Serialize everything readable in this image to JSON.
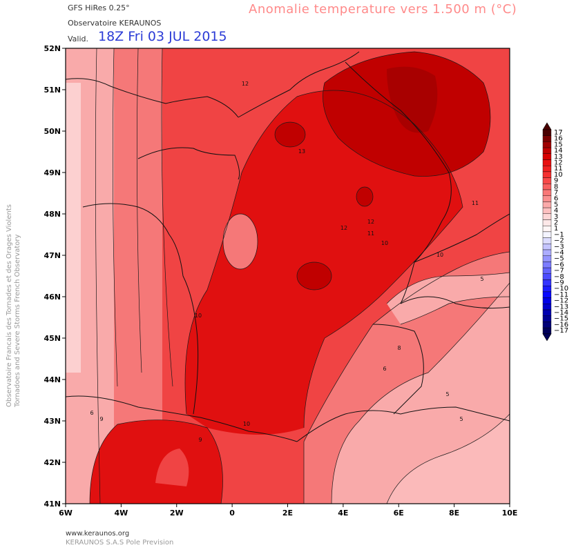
{
  "header": {
    "model": "GFS HiRes 0.25°",
    "observatory": "Observatoire KERAUNOS",
    "title": "Anomalie temperature vers 1.500 m (°C)",
    "valid_label": "Valid.",
    "valid_time": "18Z Fri 03 JUL 2015"
  },
  "side_text": {
    "line1": "Observatoire Francais des Tornades et des Orages Violents",
    "line2": "Tornadoes and Severe Storms French Observatory"
  },
  "footer": {
    "site": "www.keraunos.org",
    "company": "KERAUNOS S.A.S Pole Prevision"
  },
  "map": {
    "lat_labels": [
      "52N",
      "51N",
      "50N",
      "49N",
      "48N",
      "47N",
      "46N",
      "45N",
      "44N",
      "43N",
      "42N",
      "41N"
    ],
    "lon_labels": [
      "6W",
      "4W",
      "2W",
      "0",
      "2E",
      "4E",
      "6E",
      "8E",
      "10E"
    ],
    "contour_labels": [
      "12",
      "13",
      "12",
      "12",
      "11",
      "10",
      "11",
      "10",
      "10",
      "10",
      "9",
      "9",
      "6",
      "8",
      "6",
      "5",
      "5",
      "5"
    ],
    "colors": {
      "deep": "#c00000",
      "strong": "#e01010",
      "medium": "#f04444",
      "light": "#f57878",
      "pale": "#f9aaaa",
      "very_pale": "#fcd0d0"
    }
  },
  "legend": {
    "labels": [
      "17",
      "16",
      "15",
      "14",
      "13",
      "12",
      "11",
      "10",
      "9",
      "8",
      "7",
      "6",
      "5",
      "4",
      "3",
      "2",
      "1",
      "−1",
      "−2",
      "−3",
      "−4",
      "−5",
      "−6",
      "−7",
      "−8",
      "−9",
      "−10",
      "−11",
      "−12",
      "−13",
      "−14",
      "−15",
      "−16",
      "−17"
    ],
    "colors": [
      "#4a0000",
      "#7a0000",
      "#a00000",
      "#c00000",
      "#d80000",
      "#e81010",
      "#f02020",
      "#f53030",
      "#f84848",
      "#f86060",
      "#f97878",
      "#fa9090",
      "#fbaaaa",
      "#fcc0c0",
      "#fdd6d6",
      "#fee8e8",
      "#fff6f6",
      "#f4f4ff",
      "#dcdcff",
      "#c4c4ff",
      "#acacff",
      "#9494ff",
      "#7c7cff",
      "#6464ff",
      "#4c4cff",
      "#3434ff",
      "#1c1cff",
      "#0808ff",
      "#0000e6",
      "#0000cc",
      "#0000b0",
      "#000094",
      "#000078",
      "#00005a"
    ]
  }
}
